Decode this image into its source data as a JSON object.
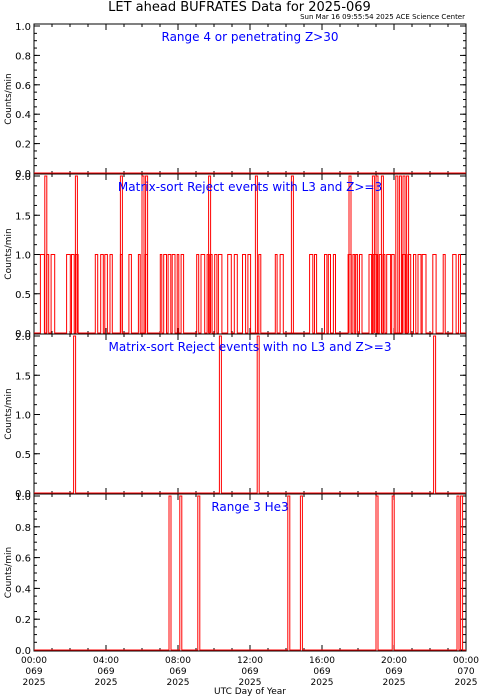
{
  "title": "LET ahead BUFRATES Data for 2025-069",
  "timestamp": "Sun Mar 16 09:55:54 2025 ACE Science Center",
  "xlabel": "UTC Day of Year",
  "x_ticks": [
    {
      "time": "00:00",
      "day": "069",
      "year": "2025"
    },
    {
      "time": "04:00",
      "day": "069",
      "year": "2025"
    },
    {
      "time": "08:00",
      "day": "069",
      "year": "2025"
    },
    {
      "time": "12:00",
      "day": "069",
      "year": "2025"
    },
    {
      "time": "16:00",
      "day": "069",
      "year": "2025"
    },
    {
      "time": "20:00",
      "day": "069",
      "year": "2025"
    },
    {
      "time": "00:00",
      "day": "070",
      "year": "2025"
    }
  ],
  "colors": {
    "series": "#ff0000",
    "label": "#0000ff",
    "axes": "#000000"
  },
  "chart_data": [
    {
      "type": "line",
      "title": "Range 4 or  penetrating Z>30",
      "ylabel": "Counts/min",
      "xlim_hours": [
        0,
        24
      ],
      "ylim": [
        0,
        1
      ],
      "yticks": [
        "0.0",
        "0.2",
        "0.4",
        "0.6",
        "0.8",
        "1.0"
      ],
      "spike_value": 1,
      "spikes_hours": []
    },
    {
      "type": "line",
      "title": "Matrix-sort Reject events with L3 and Z>=3",
      "ylabel": "Counts/min",
      "xlim_hours": [
        0,
        24
      ],
      "ylim": [
        0,
        2
      ],
      "yticks": [
        "0.0",
        "0.5",
        "1.0",
        "1.5",
        "2.0"
      ],
      "spike_value": 1,
      "spike_pattern": "dense ones with gaps",
      "twos_hours": [
        0.6,
        2.3,
        4.8,
        6.0,
        6.2,
        9.7,
        12.3,
        14.3,
        17.5,
        18.8,
        19.0,
        19.3,
        20.1,
        20.3,
        20.5,
        20.7
      ]
    },
    {
      "type": "line",
      "title": "Matrix-sort Reject events with no L3 and Z>=3",
      "ylabel": "Counts/min",
      "xlim_hours": [
        0,
        24
      ],
      "ylim": [
        0,
        2
      ],
      "yticks": [
        "0.0",
        "0.5",
        "1.0",
        "1.5",
        "2.0"
      ],
      "spike_value": 2,
      "spikes_hours": [
        2.2,
        10.3,
        12.4,
        22.2
      ]
    },
    {
      "type": "line",
      "title": "Range 3 He3",
      "ylabel": "Counts/min",
      "xlim_hours": [
        0,
        24
      ],
      "ylim": [
        0,
        1
      ],
      "yticks": [
        "0.0",
        "0.2",
        "0.4",
        "0.6",
        "0.8",
        "1.0"
      ],
      "spike_value": 1,
      "spikes_hours": [
        7.5,
        8.1,
        9.1,
        14.1,
        14.8,
        19.0,
        19.9,
        23.5,
        23.7
      ]
    }
  ]
}
